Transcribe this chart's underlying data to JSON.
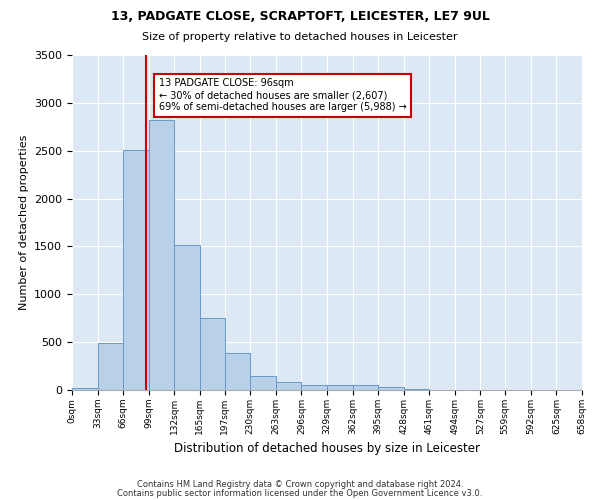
{
  "title1": "13, PADGATE CLOSE, SCRAPTOFT, LEICESTER, LE7 9UL",
  "title2": "Size of property relative to detached houses in Leicester",
  "xlabel": "Distribution of detached houses by size in Leicester",
  "ylabel": "Number of detached properties",
  "footer1": "Contains HM Land Registry data © Crown copyright and database right 2024.",
  "footer2": "Contains public sector information licensed under the Open Government Licence v3.0.",
  "bar_color": "#b8d0e8",
  "bar_edge_color": "#6699cc",
  "background_color": "#dce9f5",
  "annotation_text": "13 PADGATE CLOSE: 96sqm\n← 30% of detached houses are smaller (2,607)\n69% of semi-detached houses are larger (5,988) →",
  "vline_x": 96,
  "vline_color": "#cc0000",
  "bins": [
    0,
    33,
    66,
    99,
    132,
    165,
    197,
    230,
    263,
    296,
    329,
    362,
    395,
    428,
    461,
    494,
    527,
    559,
    592,
    625,
    658
  ],
  "bar_heights": [
    25,
    490,
    2510,
    2820,
    1515,
    750,
    390,
    145,
    80,
    55,
    55,
    55,
    35,
    15,
    5,
    0,
    0,
    0,
    0,
    0
  ],
  "ylim": [
    0,
    3500
  ],
  "xlim": [
    0,
    658
  ],
  "tick_labels": [
    "0sqm",
    "33sqm",
    "66sqm",
    "99sqm",
    "132sqm",
    "165sqm",
    "197sqm",
    "230sqm",
    "263sqm",
    "296sqm",
    "329sqm",
    "362sqm",
    "395sqm",
    "428sqm",
    "461sqm",
    "494sqm",
    "527sqm",
    "559sqm",
    "592sqm",
    "625sqm",
    "658sqm"
  ],
  "yticks": [
    0,
    500,
    1000,
    1500,
    2000,
    2500,
    3000,
    3500
  ]
}
